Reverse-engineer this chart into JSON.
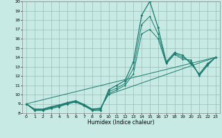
{
  "title": "",
  "xlabel": "Humidex (Indice chaleur)",
  "xlim": [
    -0.5,
    23.5
  ],
  "ylim": [
    8,
    20
  ],
  "xticks": [
    0,
    1,
    2,
    3,
    4,
    5,
    6,
    7,
    8,
    9,
    10,
    11,
    12,
    13,
    14,
    15,
    16,
    17,
    18,
    19,
    20,
    21,
    22,
    23
  ],
  "yticks": [
    8,
    9,
    10,
    11,
    12,
    13,
    14,
    15,
    16,
    17,
    18,
    19,
    20
  ],
  "bg_color": "#c8eae4",
  "grid_color": "#9bbdb8",
  "line_color": "#1a7a6e",
  "main_line": {
    "x": [
      0,
      1,
      2,
      3,
      4,
      5,
      6,
      7,
      8,
      9,
      10,
      11,
      12,
      13,
      14,
      15,
      16,
      17,
      18,
      19,
      20,
      21,
      22,
      23
    ],
    "y": [
      9,
      8.3,
      8.3,
      8.5,
      8.7,
      9.0,
      9.2,
      8.8,
      8.3,
      8.3,
      10.5,
      11.0,
      11.5,
      13.5,
      18.5,
      20,
      17.2,
      13.5,
      14.5,
      14.2,
      13.3,
      12.2,
      13.3,
      14.0
    ]
  },
  "extra_lines": [
    {
      "x": [
        0,
        1,
        2,
        3,
        4,
        5,
        6,
        7,
        8,
        9,
        10,
        11,
        12,
        13,
        14,
        15,
        16,
        17,
        18,
        19,
        20,
        21,
        22,
        23
      ],
      "y": [
        9.0,
        8.35,
        8.35,
        8.6,
        8.8,
        9.05,
        9.25,
        8.85,
        8.35,
        8.4,
        10.3,
        10.7,
        11.2,
        12.8,
        17.5,
        18.4,
        16.5,
        13.4,
        14.4,
        14.0,
        13.5,
        12.1,
        13.2,
        14.0
      ]
    },
    {
      "x": [
        0,
        1,
        2,
        3,
        4,
        5,
        6,
        7,
        8,
        9,
        10,
        11,
        12,
        13,
        14,
        15,
        16,
        17,
        18,
        19,
        20,
        21,
        22,
        23
      ],
      "y": [
        9.0,
        8.4,
        8.4,
        8.65,
        8.85,
        9.1,
        9.3,
        8.9,
        8.4,
        8.5,
        10.1,
        10.5,
        11.0,
        12.2,
        16.5,
        17.0,
        16.0,
        13.3,
        14.3,
        13.8,
        13.7,
        12.0,
        13.1,
        14.0
      ]
    },
    {
      "x": [
        0,
        1,
        2,
        3,
        4,
        5,
        6,
        7,
        8,
        9,
        10,
        23
      ],
      "y": [
        9.0,
        8.45,
        8.45,
        8.7,
        8.9,
        9.15,
        9.35,
        8.95,
        8.45,
        8.55,
        10.0,
        14.0
      ]
    },
    {
      "x": [
        0,
        23
      ],
      "y": [
        9.0,
        14.0
      ]
    }
  ]
}
